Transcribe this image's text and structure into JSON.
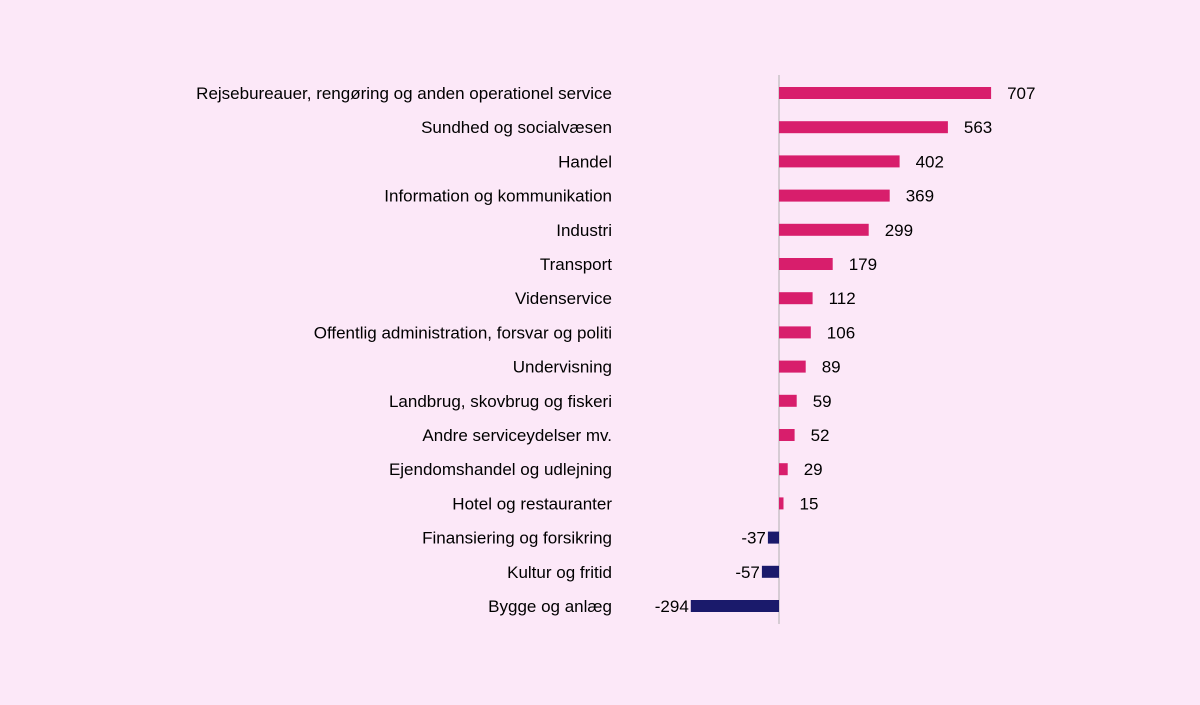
{
  "chart_data": {
    "type": "bar",
    "orientation": "horizontal",
    "title": "",
    "xlabel": "",
    "ylabel": "",
    "grid": false,
    "legend": "none",
    "xlim": [
      -330,
      730
    ],
    "categories": [
      "Rejsebureauer, rengøring og anden operationel service",
      "Sundhed og socialvæsen",
      "Handel",
      "Information og kommunikation",
      "Industri",
      "Transport",
      "Videnservice",
      "Offentlig administration, forsvar og politi",
      "Undervisning",
      "Landbrug, skovbrug og fiskeri",
      "Andre serviceydelser  mv.",
      "Ejendomshandel og udlejning",
      "Hotel og restauranter",
      "Finansiering og forsikring",
      "Kultur og fritid",
      "Bygge og anlæg"
    ],
    "values": [
      707,
      563,
      402,
      369,
      299,
      179,
      112,
      106,
      89,
      59,
      52,
      29,
      15,
      -37,
      -57,
      -294
    ],
    "data_labels": [
      "707",
      "563",
      "402",
      "369",
      "299",
      "179",
      "112",
      "106",
      "89",
      "59",
      "52",
      "29",
      "15",
      "-37",
      "-57",
      "-294"
    ],
    "colors": {
      "positive": "#d81e6c",
      "negative": "#1a1a6b",
      "axis": "#b0b0b0",
      "text": "#000000"
    }
  }
}
